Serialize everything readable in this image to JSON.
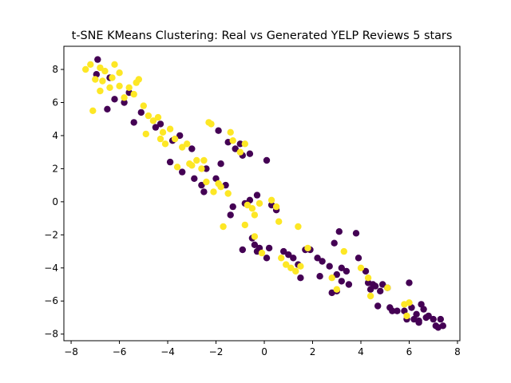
{
  "chart_data": {
    "type": "scatter",
    "title": "t-SNE KMeans Clustering: Real vs Generated YELP Reviews 5 stars",
    "xlabel": "",
    "ylabel": "",
    "xlim": [
      -8.3,
      8.1
    ],
    "ylim": [
      -8.4,
      9.4
    ],
    "xticks": [
      -8,
      -6,
      -4,
      -2,
      0,
      2,
      4,
      6,
      8
    ],
    "yticks": [
      -8,
      -6,
      -4,
      -2,
      0,
      2,
      4,
      6,
      8
    ],
    "grid": false,
    "series": [
      {
        "color": "#440154",
        "points": [
          [
            -6.9,
            8.6
          ],
          [
            -6.95,
            7.7
          ],
          [
            -6.4,
            7.5
          ],
          [
            -6.2,
            6.2
          ],
          [
            -6.5,
            5.6
          ],
          [
            -5.8,
            6.0
          ],
          [
            -5.6,
            6.6
          ],
          [
            -5.4,
            4.8
          ],
          [
            -5.1,
            5.4
          ],
          [
            -4.5,
            4.5
          ],
          [
            -4.3,
            4.7
          ],
          [
            -3.8,
            3.7
          ],
          [
            -3.5,
            4.0
          ],
          [
            -3.0,
            3.2
          ],
          [
            -3.9,
            2.4
          ],
          [
            -3.4,
            1.8
          ],
          [
            -2.9,
            1.4
          ],
          [
            -2.6,
            1.0
          ],
          [
            -2.5,
            0.6
          ],
          [
            -2.4,
            2.0
          ],
          [
            -2.0,
            1.4
          ],
          [
            -1.8,
            2.3
          ],
          [
            -1.6,
            1.0
          ],
          [
            -1.9,
            4.3
          ],
          [
            -1.5,
            3.6
          ],
          [
            -1.2,
            3.2
          ],
          [
            -1.0,
            3.5
          ],
          [
            -0.9,
            2.8
          ],
          [
            -0.6,
            2.9
          ],
          [
            0.1,
            2.5
          ],
          [
            -1.3,
            -0.3
          ],
          [
            -0.8,
            -0.1
          ],
          [
            -0.6,
            0.1
          ],
          [
            -0.3,
            0.4
          ],
          [
            0.3,
            -0.2
          ],
          [
            0.5,
            -0.5
          ],
          [
            -1.4,
            -0.8
          ],
          [
            -0.5,
            -2.2
          ],
          [
            -0.4,
            -2.6
          ],
          [
            -0.2,
            -2.8
          ],
          [
            -0.3,
            -3.0
          ],
          [
            0.1,
            -3.4
          ],
          [
            0.2,
            -2.8
          ],
          [
            -0.9,
            -2.9
          ],
          [
            0.8,
            -3.0
          ],
          [
            1.0,
            -3.2
          ],
          [
            1.2,
            -3.4
          ],
          [
            1.4,
            -3.8
          ],
          [
            1.5,
            -4.6
          ],
          [
            1.7,
            -2.9
          ],
          [
            1.9,
            -2.9
          ],
          [
            2.2,
            -3.4
          ],
          [
            2.4,
            -3.6
          ],
          [
            2.3,
            -4.5
          ],
          [
            2.7,
            -3.9
          ],
          [
            2.9,
            -2.5
          ],
          [
            3.1,
            -1.8
          ],
          [
            3.2,
            -4.0
          ],
          [
            3.0,
            -4.4
          ],
          [
            3.4,
            -4.2
          ],
          [
            3.2,
            -4.8
          ],
          [
            3.5,
            -5.0
          ],
          [
            2.8,
            -5.5
          ],
          [
            3.0,
            -5.4
          ],
          [
            3.8,
            -1.9
          ],
          [
            3.9,
            -3.4
          ],
          [
            4.2,
            -4.2
          ],
          [
            4.3,
            -4.9
          ],
          [
            4.5,
            -5.0
          ],
          [
            4.4,
            -5.3
          ],
          [
            4.6,
            -5.1
          ],
          [
            4.8,
            -5.4
          ],
          [
            4.9,
            -5.0
          ],
          [
            4.7,
            -6.3
          ],
          [
            5.1,
            -5.2
          ],
          [
            5.2,
            -6.4
          ],
          [
            5.3,
            -6.6
          ],
          [
            5.5,
            -6.6
          ],
          [
            5.8,
            -6.6
          ],
          [
            5.9,
            -7.1
          ],
          [
            6.0,
            -4.9
          ],
          [
            6.1,
            -6.4
          ],
          [
            6.2,
            -7.1
          ],
          [
            6.3,
            -6.8
          ],
          [
            6.4,
            -7.2
          ],
          [
            6.5,
            -6.2
          ],
          [
            6.6,
            -6.5
          ],
          [
            6.7,
            -7.0
          ],
          [
            6.8,
            -6.9
          ],
          [
            7.0,
            -7.1
          ],
          [
            7.1,
            -7.5
          ],
          [
            7.2,
            -7.6
          ],
          [
            7.3,
            -7.1
          ],
          [
            7.4,
            -7.5
          ],
          [
            6.4,
            -7.3
          ]
        ]
      },
      {
        "color": "#fde725",
        "points": [
          [
            -7.4,
            8.0
          ],
          [
            -7.2,
            8.3
          ],
          [
            -7.0,
            7.4
          ],
          [
            -6.8,
            8.1
          ],
          [
            -6.7,
            7.3
          ],
          [
            -6.8,
            6.7
          ],
          [
            -6.6,
            7.9
          ],
          [
            -6.4,
            6.9
          ],
          [
            -6.2,
            8.3
          ],
          [
            -6.0,
            7.8
          ],
          [
            -6.3,
            7.5
          ],
          [
            -6.0,
            7.0
          ],
          [
            -5.8,
            6.3
          ],
          [
            -5.6,
            6.9
          ],
          [
            -5.4,
            6.5
          ],
          [
            -5.3,
            7.2
          ],
          [
            -5.2,
            7.4
          ],
          [
            -5.0,
            5.8
          ],
          [
            -4.8,
            5.2
          ],
          [
            -4.9,
            4.1
          ],
          [
            -4.6,
            4.9
          ],
          [
            -4.4,
            5.1
          ],
          [
            -4.2,
            4.2
          ],
          [
            -4.3,
            3.8
          ],
          [
            -4.1,
            3.5
          ],
          [
            -3.9,
            4.4
          ],
          [
            -3.7,
            3.8
          ],
          [
            -3.6,
            2.1
          ],
          [
            -3.4,
            3.3
          ],
          [
            -3.2,
            3.5
          ],
          [
            -3.1,
            2.3
          ],
          [
            -3.0,
            2.2
          ],
          [
            -2.8,
            2.5
          ],
          [
            -2.6,
            2.0
          ],
          [
            -2.5,
            2.5
          ],
          [
            -2.4,
            1.2
          ],
          [
            -2.3,
            4.8
          ],
          [
            -2.2,
            4.7
          ],
          [
            -2.1,
            0.6
          ],
          [
            -1.9,
            1.1
          ],
          [
            -1.8,
            0.9
          ],
          [
            -1.5,
            0.5
          ],
          [
            -1.4,
            4.2
          ],
          [
            -1.3,
            3.7
          ],
          [
            -1.0,
            3.0
          ],
          [
            -0.8,
            3.5
          ],
          [
            -0.7,
            -0.2
          ],
          [
            -0.5,
            -0.4
          ],
          [
            -0.4,
            -0.8
          ],
          [
            -0.2,
            -0.1
          ],
          [
            0.3,
            0.1
          ],
          [
            0.5,
            -0.3
          ],
          [
            0.6,
            -1.2
          ],
          [
            -1.7,
            -1.5
          ],
          [
            -0.8,
            -1.4
          ],
          [
            -0.4,
            -2.1
          ],
          [
            -0.1,
            -3.1
          ],
          [
            0.7,
            -3.4
          ],
          [
            0.9,
            -3.8
          ],
          [
            1.1,
            -4.0
          ],
          [
            1.3,
            -4.2
          ],
          [
            1.4,
            -1.5
          ],
          [
            1.5,
            -3.9
          ],
          [
            1.8,
            -2.8
          ],
          [
            2.8,
            -4.6
          ],
          [
            3.0,
            -5.3
          ],
          [
            3.3,
            -3.0
          ],
          [
            4.0,
            -4.0
          ],
          [
            4.3,
            -4.6
          ],
          [
            4.4,
            -5.7
          ],
          [
            5.1,
            -5.2
          ],
          [
            5.8,
            -6.2
          ],
          [
            6.0,
            -6.1
          ],
          [
            5.9,
            -6.9
          ],
          [
            -7.1,
            5.5
          ]
        ]
      }
    ]
  }
}
